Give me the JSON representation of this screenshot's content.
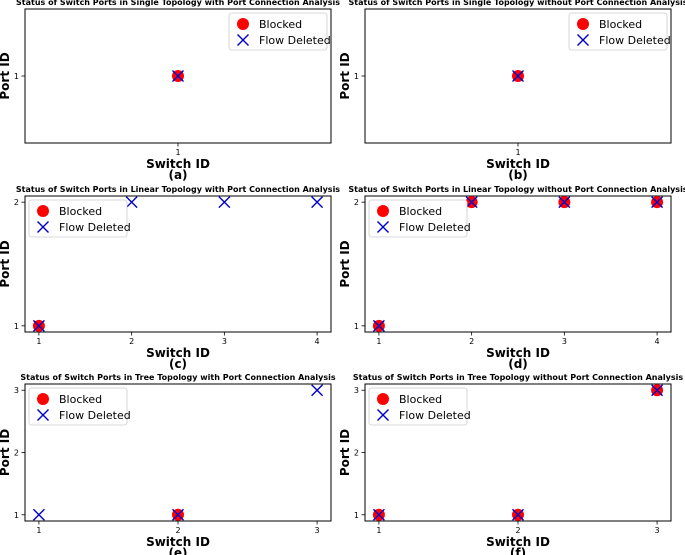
{
  "colors": {
    "blocked": "#ff0000",
    "flow_deleted": "#0000cc",
    "axis": "#000000"
  },
  "chart_data": [
    {
      "type": "scatter",
      "title": "Status of Switch Ports in Single Topology with Port Connection Analysis",
      "xlabel": "Switch ID",
      "ylabel": "Port ID",
      "panel_label": "(a)",
      "x_ticks": [
        "1"
      ],
      "y_ticks": [
        "1"
      ],
      "xlim": [
        0.5,
        1.5
      ],
      "ylim": [
        0.5,
        1.5
      ],
      "legend": {
        "position": "top-right",
        "entries": [
          "Blocked",
          "Flow Deleted"
        ]
      },
      "series": [
        {
          "name": "Blocked",
          "marker": "circle",
          "points": [
            [
              1,
              1
            ]
          ]
        },
        {
          "name": "Flow Deleted",
          "marker": "x",
          "points": [
            [
              1,
              1
            ]
          ]
        }
      ]
    },
    {
      "type": "scatter",
      "title": "Status of Switch Ports in Single Topology without Port Connection Analysis",
      "xlabel": "Switch ID",
      "ylabel": "Port ID",
      "panel_label": "(b)",
      "x_ticks": [
        "1"
      ],
      "y_ticks": [
        "1"
      ],
      "xlim": [
        0.5,
        1.5
      ],
      "ylim": [
        0.5,
        1.5
      ],
      "legend": {
        "position": "top-right",
        "entries": [
          "Blocked",
          "Flow Deleted"
        ]
      },
      "series": [
        {
          "name": "Blocked",
          "marker": "circle",
          "points": [
            [
              1,
              1
            ]
          ]
        },
        {
          "name": "Flow Deleted",
          "marker": "x",
          "points": [
            [
              1,
              1
            ]
          ]
        }
      ]
    },
    {
      "type": "scatter",
      "title": "Status of Switch Ports in Linear Topology with Port Connection Analysis",
      "xlabel": "Switch ID",
      "ylabel": "Port ID",
      "panel_label": "(c)",
      "x_ticks": [
        "1",
        "2",
        "3",
        "4"
      ],
      "y_ticks": [
        "1",
        "2"
      ],
      "xlim": [
        0.85,
        4.15
      ],
      "ylim": [
        0.95,
        2.05
      ],
      "legend": {
        "position": "top-left",
        "entries": [
          "Blocked",
          "Flow Deleted"
        ]
      },
      "series": [
        {
          "name": "Blocked",
          "marker": "circle",
          "points": [
            [
              1,
              1
            ]
          ]
        },
        {
          "name": "Flow Deleted",
          "marker": "x",
          "points": [
            [
              1,
              1
            ],
            [
              2,
              2
            ],
            [
              3,
              2
            ],
            [
              4,
              2
            ]
          ]
        }
      ]
    },
    {
      "type": "scatter",
      "title": "Status of Switch Ports in Linear Topology without Port Connection Analysis",
      "xlabel": "Switch ID",
      "ylabel": "Port ID",
      "panel_label": "(d)",
      "x_ticks": [
        "1",
        "2",
        "3",
        "4"
      ],
      "y_ticks": [
        "1",
        "2"
      ],
      "xlim": [
        0.85,
        4.15
      ],
      "ylim": [
        0.95,
        2.05
      ],
      "legend": {
        "position": "top-left",
        "entries": [
          "Blocked",
          "Flow Deleted"
        ]
      },
      "series": [
        {
          "name": "Blocked",
          "marker": "circle",
          "points": [
            [
              1,
              1
            ],
            [
              2,
              2
            ],
            [
              3,
              2
            ],
            [
              4,
              2
            ]
          ]
        },
        {
          "name": "Flow Deleted",
          "marker": "x",
          "points": [
            [
              1,
              1
            ],
            [
              2,
              2
            ],
            [
              3,
              2
            ],
            [
              4,
              2
            ]
          ]
        }
      ]
    },
    {
      "type": "scatter",
      "title": "Status of Switch Ports in Tree Topology with Port Connection Analysis",
      "xlabel": "Switch ID",
      "ylabel": "Port ID",
      "panel_label": "(e)",
      "x_ticks": [
        "1",
        "2",
        "3"
      ],
      "y_ticks": [
        "1",
        "2",
        "3"
      ],
      "xlim": [
        0.9,
        3.1
      ],
      "ylim": [
        0.9,
        3.1
      ],
      "legend": {
        "position": "top-left",
        "entries": [
          "Blocked",
          "Flow Deleted"
        ]
      },
      "series": [
        {
          "name": "Blocked",
          "marker": "circle",
          "points": [
            [
              2,
              1
            ]
          ]
        },
        {
          "name": "Flow Deleted",
          "marker": "x",
          "points": [
            [
              1,
              1
            ],
            [
              2,
              1
            ],
            [
              3,
              3
            ]
          ]
        }
      ]
    },
    {
      "type": "scatter",
      "title": "Status of Switch Ports in Tree Topology without Port Connection Analysis",
      "xlabel": "Switch ID",
      "ylabel": "Port ID",
      "panel_label": "(f)",
      "x_ticks": [
        "1",
        "2",
        "3"
      ],
      "y_ticks": [
        "1",
        "2",
        "3"
      ],
      "xlim": [
        0.9,
        3.1
      ],
      "ylim": [
        0.9,
        3.1
      ],
      "legend": {
        "position": "top-left",
        "entries": [
          "Blocked",
          "Flow Deleted"
        ]
      },
      "series": [
        {
          "name": "Blocked",
          "marker": "circle",
          "points": [
            [
              1,
              1
            ],
            [
              2,
              1
            ],
            [
              3,
              3
            ]
          ]
        },
        {
          "name": "Flow Deleted",
          "marker": "x",
          "points": [
            [
              1,
              1
            ],
            [
              2,
              1
            ],
            [
              3,
              3
            ]
          ]
        }
      ]
    }
  ]
}
